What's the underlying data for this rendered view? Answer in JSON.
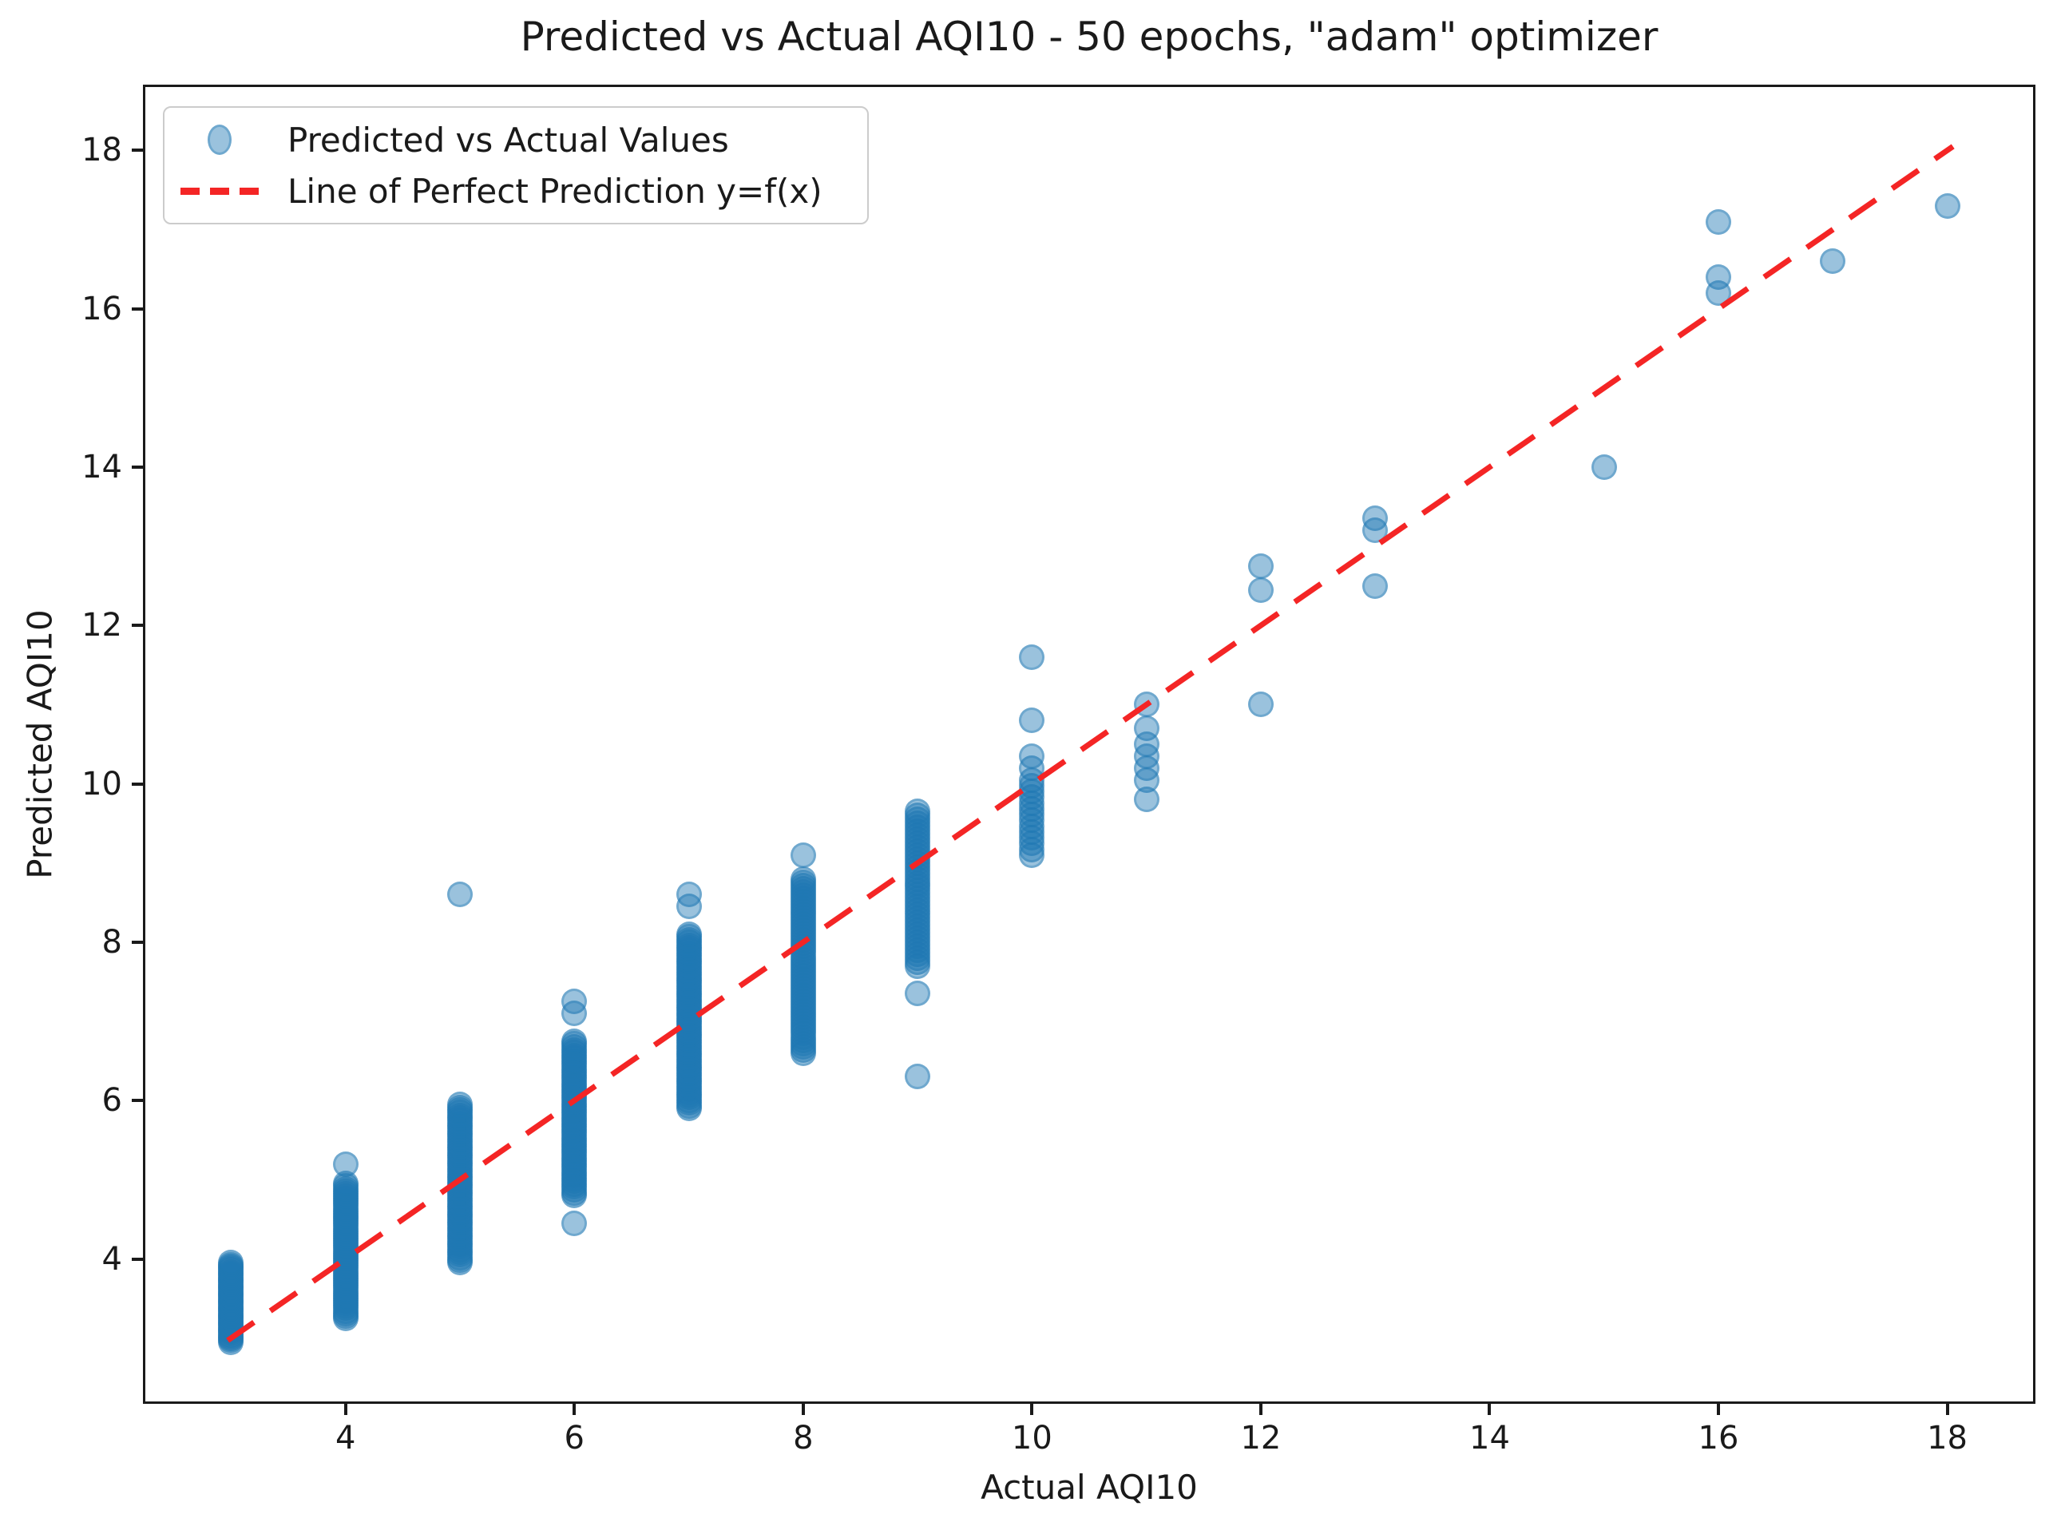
{
  "colors": {
    "scatter": "#1f77b4",
    "line": "#f42525",
    "text": "#1a1a1a",
    "spine": "#1a1a1a",
    "legend_border": "#cccccc"
  },
  "chart_data": {
    "type": "scatter",
    "title": "Predicted vs Actual AQI10 - 50 epochs, \"adam\" optimizer",
    "xlabel": "Actual AQI10",
    "ylabel": "Predicted AQI10",
    "xlim": [
      2.25,
      18.75
    ],
    "ylim": [
      2.2,
      18.8
    ],
    "x_ticks": [
      4,
      6,
      8,
      10,
      12,
      14,
      16,
      18
    ],
    "y_ticks": [
      4,
      6,
      8,
      10,
      12,
      14,
      16,
      18
    ],
    "grid": false,
    "legend_position": "upper left",
    "series": [
      {
        "name": "Predicted vs Actual Values",
        "type": "scatter",
        "color": "#1f77b4",
        "clusters": [
          {
            "x": 3,
            "y_min": 2.95,
            "y_max": 3.95,
            "n": 45
          },
          {
            "x": 4,
            "y_min": 3.25,
            "y_max": 4.95,
            "n": 55
          },
          {
            "x": 5,
            "y_min": 3.95,
            "y_max": 5.95,
            "n": 60
          },
          {
            "x": 6,
            "y_min": 4.8,
            "y_max": 6.75,
            "n": 55
          },
          {
            "x": 7,
            "y_min": 5.9,
            "y_max": 8.1,
            "n": 65
          },
          {
            "x": 8,
            "y_min": 6.6,
            "y_max": 8.8,
            "n": 55
          },
          {
            "x": 9,
            "y_min": 7.7,
            "y_max": 9.65,
            "n": 40
          },
          {
            "x": 10,
            "y_min": 9.1,
            "y_max": 10.05,
            "n": 14
          }
        ],
        "points": [
          [
            4,
            5.2
          ],
          [
            5,
            8.6
          ],
          [
            6,
            7.25
          ],
          [
            6,
            7.1
          ],
          [
            6,
            4.45
          ],
          [
            7,
            8.6
          ],
          [
            7,
            8.45
          ],
          [
            8,
            9.1
          ],
          [
            9,
            7.35
          ],
          [
            9,
            6.3
          ],
          [
            10,
            10.2
          ],
          [
            10,
            10.35
          ],
          [
            10,
            10.8
          ],
          [
            10,
            11.6
          ],
          [
            11,
            9.8
          ],
          [
            11,
            10.05
          ],
          [
            11,
            10.2
          ],
          [
            11,
            10.35
          ],
          [
            11,
            10.5
          ],
          [
            11,
            10.7
          ],
          [
            11,
            11.0
          ],
          [
            12,
            11.0
          ],
          [
            12,
            12.45
          ],
          [
            12,
            12.75
          ],
          [
            13,
            12.5
          ],
          [
            13,
            13.2
          ],
          [
            13,
            13.35
          ],
          [
            15,
            14.0
          ],
          [
            16,
            16.2
          ],
          [
            16,
            16.4
          ],
          [
            16,
            17.1
          ],
          [
            17,
            16.6
          ],
          [
            18,
            17.3
          ]
        ]
      },
      {
        "name": "Line of Perfect Prediction y=f(x)",
        "type": "line",
        "style": "dashed",
        "color": "#f42525",
        "points": [
          [
            2.97,
            2.97
          ],
          [
            18.05,
            18.05
          ]
        ]
      }
    ]
  }
}
